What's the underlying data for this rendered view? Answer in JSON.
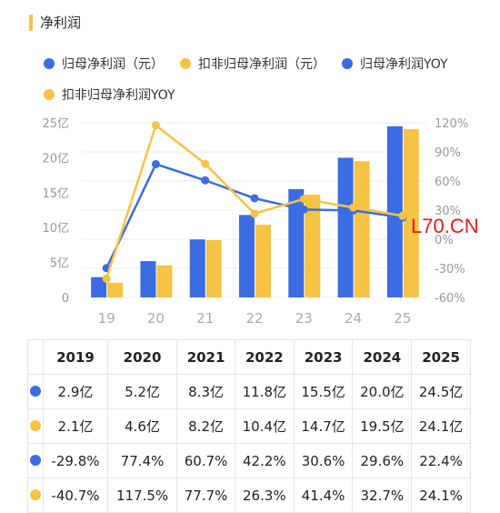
{
  "header": {
    "title": "净利润"
  },
  "legend": [
    {
      "label": "归母净利润（元）",
      "color": "#3b6ce4"
    },
    {
      "label": "扣非归母净利润（元）",
      "color": "#f6c343"
    },
    {
      "label": "归母净利润YOY",
      "color": "#3b6ce4"
    },
    {
      "label": "扣非归母净利润YOY",
      "color": "#f6c343"
    }
  ],
  "watermark": "L70.CN",
  "chart_data": {
    "type": "bar",
    "categories": [
      "19",
      "20",
      "21",
      "22",
      "23",
      "24",
      "25"
    ],
    "series": [
      {
        "name": "归母净利润（元）",
        "type": "bar",
        "axis": "left",
        "color": "#3b6ce4",
        "values": [
          2.9,
          5.2,
          8.3,
          11.8,
          15.5,
          20.0,
          24.5
        ]
      },
      {
        "name": "扣非归母净利润（元）",
        "type": "bar",
        "axis": "left",
        "color": "#f6c343",
        "values": [
          2.1,
          4.6,
          8.2,
          10.4,
          14.7,
          19.5,
          24.1
        ]
      },
      {
        "name": "归母净利润YOY",
        "type": "line",
        "axis": "right",
        "color": "#3b6ce4",
        "values": [
          -29.8,
          77.4,
          60.7,
          42.2,
          30.6,
          29.6,
          22.4
        ]
      },
      {
        "name": "扣非归母净利润YOY",
        "type": "line",
        "axis": "right",
        "color": "#f6c343",
        "values": [
          -40.7,
          117.5,
          77.7,
          26.3,
          41.4,
          32.7,
          24.1
        ]
      }
    ],
    "yleft_ticks": [
      "0",
      "5亿",
      "10亿",
      "15亿",
      "20亿",
      "25亿"
    ],
    "yleft_range": [
      0,
      25
    ],
    "yright_ticks": [
      "-60%",
      "-30%",
      "0%",
      "30%",
      "60%",
      "90%",
      "120%"
    ],
    "yright_range": [
      -60,
      120
    ],
    "grid": true
  },
  "table": {
    "headers": [
      "",
      "2019",
      "2020",
      "2021",
      "2022",
      "2023",
      "2024",
      "2025"
    ],
    "rows": [
      {
        "color": "#3b6ce4",
        "cells": [
          "2.9亿",
          "5.2亿",
          "8.3亿",
          "11.8亿",
          "15.5亿",
          "20.0亿",
          "24.5亿"
        ]
      },
      {
        "color": "#f6c343",
        "cells": [
          "2.1亿",
          "4.6亿",
          "8.2亿",
          "10.4亿",
          "14.7亿",
          "19.5亿",
          "24.1亿"
        ]
      },
      {
        "color": "#3b6ce4",
        "cells": [
          "-29.8%",
          "77.4%",
          "60.7%",
          "42.2%",
          "30.6%",
          "29.6%",
          "22.4%"
        ]
      },
      {
        "color": "#f6c343",
        "cells": [
          "-40.7%",
          "117.5%",
          "77.7%",
          "26.3%",
          "41.4%",
          "32.7%",
          "24.1%"
        ]
      }
    ]
  }
}
